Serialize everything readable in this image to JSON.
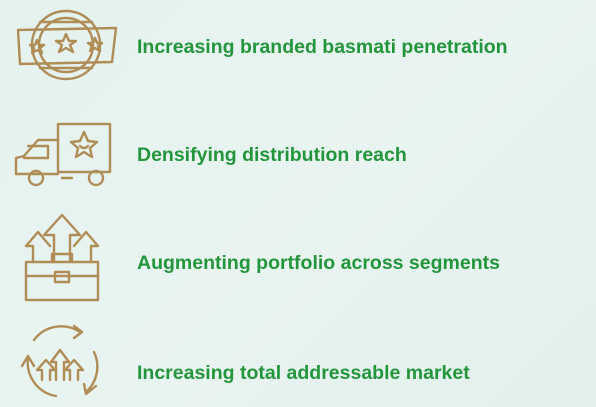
{
  "items": [
    {
      "label": "Increasing branded basmati penetration"
    },
    {
      "label": "Densifying distribution reach"
    },
    {
      "label": "Augmenting portfolio across segments"
    },
    {
      "label": "Increasing total addressable market"
    }
  ]
}
